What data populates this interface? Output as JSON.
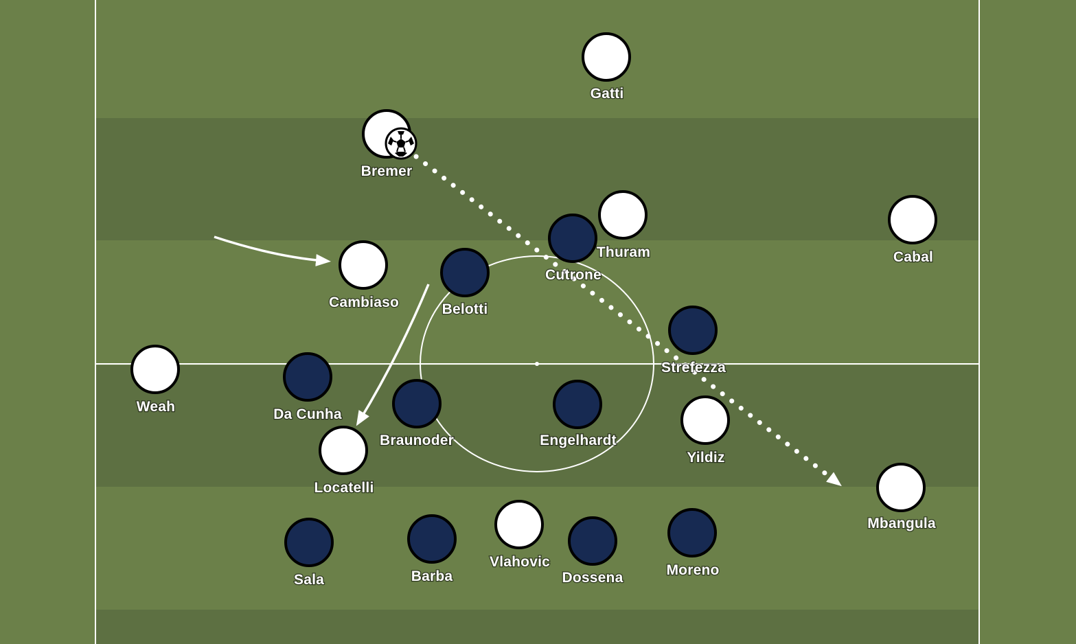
{
  "pitch": {
    "grass_light": "#6b8049",
    "grass_dark": "#5d7042",
    "line_color": "#ffffff"
  },
  "teams": {
    "white": {
      "fill": "#ffffff",
      "stroke": "#000000"
    },
    "navy": {
      "fill": "#172a52",
      "stroke": "#000000"
    }
  },
  "players": [
    {
      "id": "gatti",
      "name": "Gatti",
      "team": "white"
    },
    {
      "id": "bremer",
      "name": "Bremer",
      "team": "white",
      "has_ball": true
    },
    {
      "id": "thuram",
      "name": "Thuram",
      "team": "white"
    },
    {
      "id": "cutrone",
      "name": "Cutrone",
      "team": "navy"
    },
    {
      "id": "cabal",
      "name": "Cabal",
      "team": "white"
    },
    {
      "id": "cambiaso",
      "name": "Cambiaso",
      "team": "white"
    },
    {
      "id": "belotti",
      "name": "Belotti",
      "team": "navy"
    },
    {
      "id": "strefezza",
      "name": "Strefezza",
      "team": "navy"
    },
    {
      "id": "weah",
      "name": "Weah",
      "team": "white"
    },
    {
      "id": "dacunha",
      "name": "Da Cunha",
      "team": "navy"
    },
    {
      "id": "braunoder",
      "name": "Braunoder",
      "team": "navy"
    },
    {
      "id": "engelhardt",
      "name": "Engelhardt",
      "team": "navy"
    },
    {
      "id": "yildiz",
      "name": "Yildiz",
      "team": "white"
    },
    {
      "id": "locatelli",
      "name": "Locatelli",
      "team": "white"
    },
    {
      "id": "mbangula",
      "name": "Mbangula",
      "team": "white"
    },
    {
      "id": "sala",
      "name": "Sala",
      "team": "navy"
    },
    {
      "id": "barba",
      "name": "Barba",
      "team": "navy"
    },
    {
      "id": "vlahovic",
      "name": "Vlahovic",
      "team": "white"
    },
    {
      "id": "dossena",
      "name": "Dossena",
      "team": "navy"
    },
    {
      "id": "moreno",
      "name": "Moreno",
      "team": "navy"
    }
  ],
  "arrows": [
    {
      "id": "pass-bremer-to-mbangula",
      "style": "dotted",
      "from": "bremer",
      "to": "mbangula"
    },
    {
      "id": "run-to-cambiaso",
      "style": "solid",
      "to": "cambiaso"
    },
    {
      "id": "run-to-locatelli",
      "style": "solid",
      "to": "locatelli"
    }
  ],
  "ball_icon": "soccer-ball-icon"
}
